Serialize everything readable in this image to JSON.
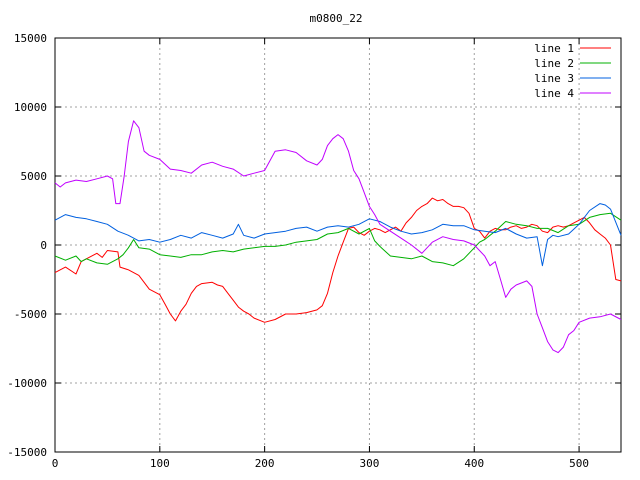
{
  "chart_data": {
    "type": "line",
    "title": "m0800_22",
    "xlabel": "",
    "ylabel": "",
    "xlim": [
      0,
      540
    ],
    "ylim": [
      -15000,
      15000
    ],
    "xticks": [
      0,
      100,
      200,
      300,
      400,
      500
    ],
    "yticks": [
      -15000,
      -10000,
      -5000,
      0,
      5000,
      10000,
      15000
    ],
    "grid": true,
    "legend_position": "top-right",
    "series": [
      {
        "name": "line 1",
        "color": "#ff0000",
        "points": [
          [
            0,
            -2000
          ],
          [
            10,
            -1600
          ],
          [
            20,
            -2100
          ],
          [
            25,
            -1200
          ],
          [
            30,
            -1000
          ],
          [
            40,
            -600
          ],
          [
            45,
            -900
          ],
          [
            50,
            -400
          ],
          [
            60,
            -500
          ],
          [
            62,
            -1600
          ],
          [
            70,
            -1800
          ],
          [
            80,
            -2200
          ],
          [
            90,
            -3200
          ],
          [
            100,
            -3600
          ],
          [
            105,
            -4300
          ],
          [
            110,
            -5000
          ],
          [
            115,
            -5500
          ],
          [
            120,
            -4800
          ],
          [
            125,
            -4300
          ],
          [
            130,
            -3500
          ],
          [
            135,
            -3000
          ],
          [
            140,
            -2800
          ],
          [
            150,
            -2700
          ],
          [
            155,
            -2900
          ],
          [
            160,
            -3000
          ],
          [
            165,
            -3500
          ],
          [
            170,
            -4000
          ],
          [
            175,
            -4500
          ],
          [
            180,
            -4800
          ],
          [
            185,
            -5000
          ],
          [
            190,
            -5300
          ],
          [
            200,
            -5600
          ],
          [
            210,
            -5400
          ],
          [
            220,
            -5000
          ],
          [
            230,
            -5000
          ],
          [
            240,
            -4900
          ],
          [
            250,
            -4700
          ],
          [
            255,
            -4400
          ],
          [
            260,
            -3500
          ],
          [
            265,
            -2000
          ],
          [
            270,
            -800
          ],
          [
            275,
            200
          ],
          [
            280,
            1200
          ],
          [
            285,
            1300
          ],
          [
            290,
            900
          ],
          [
            295,
            700
          ],
          [
            300,
            1000
          ],
          [
            305,
            1200
          ],
          [
            310,
            1100
          ],
          [
            315,
            900
          ],
          [
            320,
            1100
          ],
          [
            325,
            1300
          ],
          [
            330,
            1000
          ],
          [
            335,
            1600
          ],
          [
            340,
            2000
          ],
          [
            345,
            2500
          ],
          [
            350,
            2800
          ],
          [
            355,
            3000
          ],
          [
            360,
            3400
          ],
          [
            365,
            3200
          ],
          [
            370,
            3300
          ],
          [
            375,
            3000
          ],
          [
            380,
            2800
          ],
          [
            385,
            2800
          ],
          [
            390,
            2700
          ],
          [
            395,
            2300
          ],
          [
            400,
            1200
          ],
          [
            405,
            1000
          ],
          [
            410,
            500
          ],
          [
            415,
            1000
          ],
          [
            420,
            1200
          ],
          [
            425,
            1100
          ],
          [
            430,
            1100
          ],
          [
            435,
            1300
          ],
          [
            440,
            1400
          ],
          [
            445,
            1200
          ],
          [
            450,
            1300
          ],
          [
            455,
            1500
          ],
          [
            460,
            1400
          ],
          [
            465,
            1000
          ],
          [
            470,
            900
          ],
          [
            475,
            1300
          ],
          [
            480,
            1400
          ],
          [
            485,
            1300
          ],
          [
            490,
            1400
          ],
          [
            495,
            1600
          ],
          [
            500,
            1800
          ],
          [
            505,
            2000
          ],
          [
            510,
            1600
          ],
          [
            515,
            1100
          ],
          [
            520,
            800
          ],
          [
            525,
            500
          ],
          [
            530,
            0
          ],
          [
            535,
            -2500
          ],
          [
            540,
            -2600
          ]
        ]
      },
      {
        "name": "line 2",
        "color": "#00b000",
        "points": [
          [
            0,
            -800
          ],
          [
            10,
            -1100
          ],
          [
            20,
            -800
          ],
          [
            25,
            -1200
          ],
          [
            30,
            -1000
          ],
          [
            40,
            -1300
          ],
          [
            50,
            -1400
          ],
          [
            60,
            -1000
          ],
          [
            65,
            -700
          ],
          [
            70,
            -200
          ],
          [
            75,
            400
          ],
          [
            80,
            -200
          ],
          [
            90,
            -300
          ],
          [
            100,
            -700
          ],
          [
            110,
            -800
          ],
          [
            120,
            -900
          ],
          [
            130,
            -700
          ],
          [
            140,
            -700
          ],
          [
            150,
            -500
          ],
          [
            160,
            -400
          ],
          [
            170,
            -500
          ],
          [
            180,
            -300
          ],
          [
            190,
            -200
          ],
          [
            200,
            -100
          ],
          [
            210,
            -100
          ],
          [
            220,
            0
          ],
          [
            230,
            200
          ],
          [
            240,
            300
          ],
          [
            250,
            400
          ],
          [
            260,
            800
          ],
          [
            270,
            900
          ],
          [
            280,
            1200
          ],
          [
            290,
            800
          ],
          [
            300,
            1200
          ],
          [
            305,
            300
          ],
          [
            310,
            -100
          ],
          [
            320,
            -800
          ],
          [
            330,
            -900
          ],
          [
            340,
            -1000
          ],
          [
            350,
            -800
          ],
          [
            360,
            -1200
          ],
          [
            370,
            -1300
          ],
          [
            380,
            -1500
          ],
          [
            390,
            -1000
          ],
          [
            400,
            -200
          ],
          [
            405,
            200
          ],
          [
            410,
            400
          ],
          [
            420,
            1000
          ],
          [
            430,
            1700
          ],
          [
            440,
            1500
          ],
          [
            450,
            1400
          ],
          [
            460,
            1200
          ],
          [
            470,
            1200
          ],
          [
            480,
            900
          ],
          [
            490,
            1400
          ],
          [
            500,
            1500
          ],
          [
            510,
            2000
          ],
          [
            520,
            2200
          ],
          [
            530,
            2300
          ],
          [
            540,
            1800
          ]
        ]
      },
      {
        "name": "line 3",
        "color": "#0060e0",
        "points": [
          [
            0,
            1800
          ],
          [
            10,
            2200
          ],
          [
            20,
            2000
          ],
          [
            30,
            1900
          ],
          [
            40,
            1700
          ],
          [
            50,
            1500
          ],
          [
            60,
            1000
          ],
          [
            70,
            700
          ],
          [
            80,
            300
          ],
          [
            90,
            400
          ],
          [
            100,
            200
          ],
          [
            110,
            400
          ],
          [
            120,
            700
          ],
          [
            130,
            500
          ],
          [
            140,
            900
          ],
          [
            150,
            700
          ],
          [
            160,
            500
          ],
          [
            170,
            800
          ],
          [
            175,
            1500
          ],
          [
            180,
            700
          ],
          [
            190,
            500
          ],
          [
            200,
            800
          ],
          [
            210,
            900
          ],
          [
            220,
            1000
          ],
          [
            230,
            1200
          ],
          [
            240,
            1300
          ],
          [
            250,
            1000
          ],
          [
            260,
            1300
          ],
          [
            270,
            1400
          ],
          [
            280,
            1300
          ],
          [
            290,
            1500
          ],
          [
            300,
            1900
          ],
          [
            310,
            1700
          ],
          [
            320,
            1300
          ],
          [
            330,
            1000
          ],
          [
            340,
            800
          ],
          [
            350,
            900
          ],
          [
            360,
            1100
          ],
          [
            370,
            1500
          ],
          [
            380,
            1400
          ],
          [
            390,
            1400
          ],
          [
            400,
            1100
          ],
          [
            410,
            1000
          ],
          [
            420,
            900
          ],
          [
            430,
            1200
          ],
          [
            440,
            800
          ],
          [
            450,
            500
          ],
          [
            460,
            600
          ],
          [
            465,
            -1500
          ],
          [
            470,
            400
          ],
          [
            475,
            700
          ],
          [
            480,
            600
          ],
          [
            490,
            800
          ],
          [
            500,
            1500
          ],
          [
            510,
            2500
          ],
          [
            520,
            3000
          ],
          [
            525,
            2900
          ],
          [
            530,
            2600
          ],
          [
            540,
            700
          ]
        ]
      },
      {
        "name": "line 4",
        "color": "#c000ff",
        "points": [
          [
            0,
            4500
          ],
          [
            5,
            4200
          ],
          [
            10,
            4500
          ],
          [
            20,
            4700
          ],
          [
            30,
            4600
          ],
          [
            40,
            4800
          ],
          [
            50,
            5000
          ],
          [
            55,
            4800
          ],
          [
            58,
            3000
          ],
          [
            62,
            3000
          ],
          [
            66,
            5000
          ],
          [
            70,
            7500
          ],
          [
            75,
            9000
          ],
          [
            80,
            8500
          ],
          [
            85,
            6800
          ],
          [
            90,
            6500
          ],
          [
            100,
            6200
          ],
          [
            110,
            5500
          ],
          [
            120,
            5400
          ],
          [
            130,
            5200
          ],
          [
            140,
            5800
          ],
          [
            150,
            6000
          ],
          [
            160,
            5700
          ],
          [
            170,
            5500
          ],
          [
            180,
            5000
          ],
          [
            190,
            5200
          ],
          [
            200,
            5400
          ],
          [
            210,
            6800
          ],
          [
            220,
            6900
          ],
          [
            230,
            6700
          ],
          [
            240,
            6100
          ],
          [
            250,
            5800
          ],
          [
            255,
            6200
          ],
          [
            260,
            7200
          ],
          [
            265,
            7700
          ],
          [
            270,
            8000
          ],
          [
            275,
            7700
          ],
          [
            280,
            6800
          ],
          [
            285,
            5400
          ],
          [
            290,
            4800
          ],
          [
            295,
            3800
          ],
          [
            300,
            2800
          ],
          [
            305,
            2200
          ],
          [
            310,
            1500
          ],
          [
            320,
            1000
          ],
          [
            330,
            500
          ],
          [
            340,
            0
          ],
          [
            350,
            -600
          ],
          [
            360,
            200
          ],
          [
            370,
            600
          ],
          [
            380,
            400
          ],
          [
            390,
            300
          ],
          [
            400,
            0
          ],
          [
            410,
            -800
          ],
          [
            415,
            -1500
          ],
          [
            420,
            -1200
          ],
          [
            425,
            -2500
          ],
          [
            430,
            -3800
          ],
          [
            435,
            -3200
          ],
          [
            440,
            -2900
          ],
          [
            450,
            -2600
          ],
          [
            455,
            -3000
          ],
          [
            460,
            -5000
          ],
          [
            465,
            -6000
          ],
          [
            470,
            -7000
          ],
          [
            475,
            -7600
          ],
          [
            480,
            -7800
          ],
          [
            485,
            -7400
          ],
          [
            490,
            -6500
          ],
          [
            495,
            -6200
          ],
          [
            500,
            -5600
          ],
          [
            510,
            -5300
          ],
          [
            520,
            -5200
          ],
          [
            530,
            -5000
          ],
          [
            540,
            -5400
          ]
        ]
      }
    ]
  }
}
